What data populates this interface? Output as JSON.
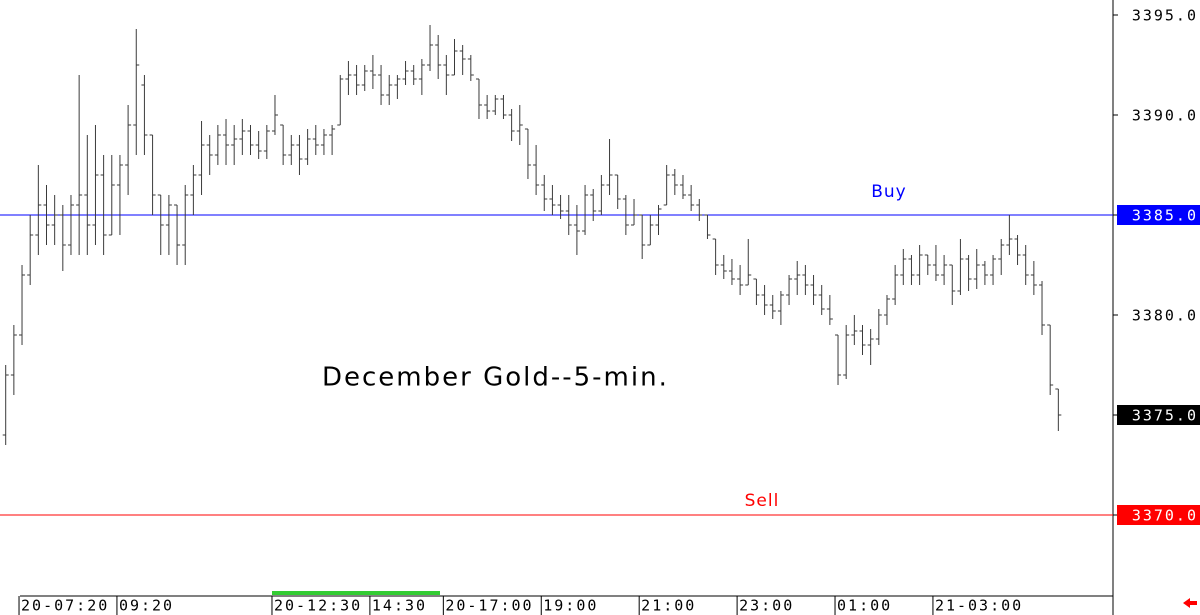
{
  "chart_data": {
    "type": "ohlc",
    "title": "December Gold--5-min.",
    "categories": [
      null,
      null,
      "20-07:20",
      null,
      null,
      null,
      null,
      null,
      null,
      null,
      null,
      null,
      null,
      null,
      "09:20",
      null,
      null,
      null,
      null,
      null,
      null,
      null,
      null,
      null,
      null,
      null,
      null,
      null,
      null,
      null,
      null,
      null,
      null,
      "20-12:30",
      null,
      null,
      null,
      null,
      null,
      null,
      null,
      null,
      null,
      null,
      null,
      "14:30",
      null,
      null,
      null,
      null,
      null,
      null,
      null,
      null,
      "20-17:00",
      null,
      null,
      null,
      null,
      null,
      null,
      null,
      null,
      null,
      null,
      null,
      "19:00",
      null,
      null,
      null,
      null,
      null,
      null,
      null,
      null,
      null,
      null,
      null,
      "21:00",
      null,
      null,
      null,
      null,
      null,
      null,
      null,
      null,
      null,
      null,
      null,
      "23:00",
      null,
      null,
      null,
      null,
      null,
      null,
      null,
      null,
      null,
      null,
      null,
      "01:00",
      null,
      null,
      null,
      null,
      null,
      null,
      null,
      null,
      null,
      null,
      null,
      "21-03:00",
      null,
      null,
      null,
      null,
      null,
      null,
      null,
      null,
      null,
      null,
      null,
      null,
      null,
      null,
      null
    ],
    "open": [
      3374.0,
      3377.0,
      3379.0,
      3382.0,
      3384.0,
      3385.5,
      3384.5,
      3385.0,
      3383.5,
      3385.5,
      3386.0,
      3384.5,
      3387.0,
      3384.0,
      3386.5,
      3387.5,
      3389.5,
      3391.5,
      3389.0,
      3386.0,
      3384.5,
      3385.5,
      3383.5,
      3386.0,
      3387.0,
      3388.5,
      3388.0,
      3389.0,
      3388.5,
      3388.8,
      3389.2,
      3388.5,
      3388.2,
      3389.2,
      3389.5,
      3388.0,
      3388.5,
      3387.8,
      3388.8,
      3388.5,
      3389.0,
      3389.5,
      3391.8,
      3392.0,
      3391.5,
      3392.2,
      3392.0,
      3391.0,
      3391.5,
      3391.8,
      3392.2,
      3391.8,
      3392.5,
      3393.5,
      3392.5,
      3392.0,
      3393.2,
      3392.8,
      3391.8,
      3390.5,
      3390.2,
      3390.8,
      3390.0,
      3389.2,
      3389.3,
      3387.5,
      3386.5,
      3385.8,
      3385.5,
      3385.2,
      3384.5,
      3384.2,
      3386.0,
      3385.2,
      3386.5,
      3387.0,
      3385.8,
      3384.5,
      3385.0,
      3383.5,
      3384.5,
      3385.5,
      3387.0,
      3386.5,
      3386.0,
      3385.5,
      3385.0,
      3383.8,
      3382.5,
      3382.2,
      3381.8,
      3381.5,
      3381.8,
      3381.0,
      3380.5,
      3380.2,
      3381.0,
      3381.8,
      3382.0,
      3381.5,
      3381.0,
      3380.3,
      3379.0,
      3377.0,
      3379.0,
      3379.2,
      3378.5,
      3378.8,
      3380.0,
      3380.8,
      3382.0,
      3382.8,
      3382.0,
      3383.0,
      3382.5,
      3382.0,
      3382.5,
      3381.2,
      3382.8,
      3381.8,
      3382.5,
      3382.0,
      3382.8,
      3383.5,
      3383.8,
      3383.0,
      3382.0,
      3381.5,
      3379.5,
      3376.3
    ],
    "high": [
      3377.5,
      3379.5,
      3382.5,
      3385,
      3387.5,
      3386.5,
      3386,
      3385.5,
      3386,
      3392,
      3389,
      3389.5,
      3388,
      3388,
      3388,
      3390.5,
      3394.3,
      3392,
      3389,
      3386,
      3386,
      3385.5,
      3386.5,
      3387.5,
      3389.7,
      3389,
      3389.5,
      3389.8,
      3389.5,
      3389.8,
      3389.5,
      3389.2,
      3389.5,
      3391,
      3389.5,
      3389,
      3389,
      3389.3,
      3389.5,
      3389.3,
      3389.5,
      3392,
      3392.7,
      3392.5,
      3392.5,
      3393,
      3392.5,
      3392,
      3392,
      3392.7,
      3392.5,
      3392.8,
      3394.5,
      3394,
      3393,
      3393.8,
      3393.5,
      3393,
      3391.8,
      3391,
      3391,
      3391,
      3390.3,
      3390.5,
      3389.3,
      3388.5,
      3387,
      3386.5,
      3386,
      3386,
      3385.5,
      3386.5,
      3386.3,
      3387,
      3388.8,
      3387,
      3386,
      3385.8,
      3385,
      3385,
      3385.5,
      3387.5,
      3387.3,
      3387,
      3386.5,
      3385.8,
      3385,
      3383.8,
      3383,
      3382.8,
      3382.5,
      3383.8,
      3381.8,
      3381.5,
      3381,
      3381.2,
      3382,
      3382.7,
      3382.5,
      3382,
      3381.5,
      3381,
      3379,
      3379.5,
      3380,
      3379.5,
      3379.3,
      3380.3,
      3381,
      3382.5,
      3383.3,
      3383,
      3383.5,
      3383,
      3383.5,
      3383,
      3382.5,
      3383.8,
      3383,
      3383.3,
      3382.7,
      3383,
      3383.8,
      3385,
      3384,
      3383.5,
      3382.7,
      3381.7,
      3379.5,
      3376.3
    ],
    "low": [
      3373.5,
      3376,
      3378.5,
      3381.5,
      3383,
      3383.5,
      3383.5,
      3382.2,
      3383,
      3383,
      3383,
      3383.5,
      3383,
      3384,
      3384,
      3386,
      3388,
      3388,
      3385,
      3383,
      3383,
      3382.5,
      3382.5,
      3385,
      3386,
      3387,
      3387.5,
      3387.5,
      3387.5,
      3388,
      3388,
      3387.8,
      3387.8,
      3389,
      3387.5,
      3387.5,
      3387,
      3387.5,
      3388,
      3388,
      3388,
      3389.5,
      3391,
      3391,
      3391.2,
      3391.3,
      3390.5,
      3390.5,
      3390.8,
      3391.5,
      3391.5,
      3391,
      3392.2,
      3391.8,
      3391,
      3392,
      3392,
      3391.7,
      3389.8,
      3389.8,
      3390,
      3389.8,
      3388.7,
      3388.5,
      3386.8,
      3386,
      3385.2,
      3385,
      3384.8,
      3384,
      3383,
      3384,
      3384.7,
      3385,
      3386,
      3385.3,
      3384,
      3384.5,
      3382.8,
      3383.5,
      3384,
      3385.5,
      3386,
      3385.8,
      3385.2,
      3384.7,
      3383.8,
      3382,
      3381.8,
      3381.5,
      3381,
      3381.5,
      3380.5,
      3380,
      3379.8,
      3379.5,
      3380.5,
      3381,
      3381,
      3380.5,
      3380,
      3379.5,
      3376.5,
      3376.8,
      3378.5,
      3378,
      3377.5,
      3378.5,
      3379.5,
      3380.5,
      3381.5,
      3381.5,
      3381.5,
      3382,
      3381.7,
      3381.5,
      3380.5,
      3381,
      3381.2,
      3381.3,
      3381.5,
      3381.5,
      3382,
      3383,
      3382.5,
      3381.5,
      3381,
      3379,
      3376,
      3374.2
    ],
    "close": [
      3377.0,
      3379.0,
      3382.0,
      3384.0,
      3385.5,
      3384.5,
      3385.0,
      3383.5,
      3385.5,
      3386.0,
      3384.5,
      3387.0,
      3384.0,
      3386.5,
      3387.5,
      3389.5,
      3392.5,
      3389.0,
      3386.0,
      3384.5,
      3385.5,
      3383.5,
      3386.0,
      3387.0,
      3388.5,
      3388.0,
      3389.0,
      3388.5,
      3388.8,
      3389.2,
      3388.5,
      3388.2,
      3389.2,
      3390.0,
      3388.0,
      3388.5,
      3387.8,
      3388.8,
      3388.5,
      3389.0,
      3389.3,
      3391.8,
      3392.0,
      3391.5,
      3392.2,
      3392.0,
      3391.0,
      3391.5,
      3391.8,
      3392.2,
      3391.8,
      3392.5,
      3393.5,
      3392.5,
      3392.0,
      3393.2,
      3392.8,
      3392.0,
      3390.5,
      3390.2,
      3390.8,
      3390.0,
      3389.2,
      3389.5,
      3387.5,
      3386.5,
      3385.8,
      3385.5,
      3385.2,
      3384.5,
      3384.2,
      3386.0,
      3385.2,
      3386.5,
      3387.0,
      3385.8,
      3384.5,
      3385.0,
      3383.5,
      3384.5,
      3385.3,
      3387.0,
      3386.5,
      3386.0,
      3385.5,
      3385.0,
      3384.0,
      3382.5,
      3382.2,
      3381.8,
      3381.5,
      3382.0,
      3381.0,
      3380.5,
      3380.2,
      3381.0,
      3381.8,
      3382.0,
      3381.5,
      3381.0,
      3380.3,
      3379.8,
      3377.0,
      3379.0,
      3379.2,
      3378.5,
      3378.8,
      3380.0,
      3380.8,
      3382.0,
      3382.8,
      3382.0,
      3383.0,
      3382.5,
      3382.0,
      3382.5,
      3381.2,
      3382.8,
      3381.8,
      3382.5,
      3382.0,
      3382.8,
      3383.5,
      3383.8,
      3383.0,
      3382.0,
      3381.5,
      3379.5,
      3376.5,
      3375.0
    ],
    "color": "#3a3a3a",
    "ylim": [
      3366.25,
      3395.75
    ],
    "yticks": [
      {
        "value": 3370,
        "label": "3370.0"
      },
      {
        "value": 3375,
        "label": "3375.0"
      },
      {
        "value": 3380,
        "label": "3380.0"
      },
      {
        "value": 3385,
        "label": "3385.0"
      },
      {
        "value": 3390,
        "label": "3390.0"
      },
      {
        "value": 3395,
        "label": "3395.0"
      }
    ],
    "levels": [
      {
        "name": "Buy",
        "value": 3385,
        "color": "#0000ff"
      },
      {
        "name": "Sell",
        "value": 3370,
        "color": "#ff0000"
      }
    ],
    "last_marker_color": "#000000"
  }
}
